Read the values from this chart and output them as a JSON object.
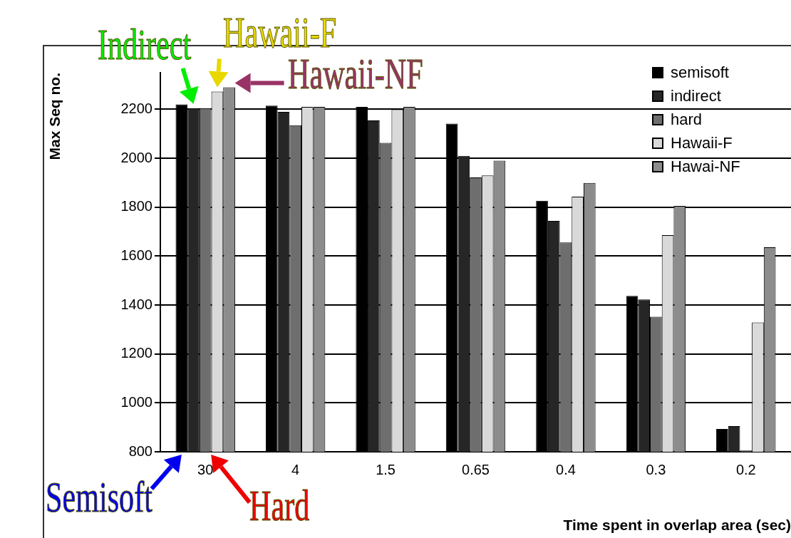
{
  "chart_data": {
    "type": "bar",
    "xlabel": "Time spent in overlap area (sec)",
    "ylabel": "Max Seq no.",
    "categories": [
      "30",
      "4",
      "1.5",
      "0.65",
      "0.4",
      "0.3",
      "0.2"
    ],
    "series": [
      {
        "name": "semisoft",
        "color": "#000000",
        "values": [
          2220,
          2215,
          2210,
          2142,
          1826,
          1437,
          893
        ]
      },
      {
        "name": "indirect",
        "color": "#262626",
        "values": [
          2205,
          2190,
          2155,
          2010,
          1744,
          1423,
          905
        ]
      },
      {
        "name": "hard",
        "color": "#6e6e6e",
        "values": [
          2205,
          2135,
          2063,
          1922,
          1656,
          1352,
          805
        ]
      },
      {
        "name": "Hawaii-F",
        "color": "#d9d9d9",
        "values": [
          2273,
          2210,
          2200,
          1930,
          1843,
          1686,
          1329
        ]
      },
      {
        "name": "Hawai-NF",
        "color": "#8c8c8c",
        "values": [
          2290,
          2210,
          2210,
          1990,
          1899,
          1805,
          1636
        ]
      }
    ],
    "ylim": [
      800,
      2350
    ],
    "yticks": [
      800,
      1000,
      1200,
      1400,
      1600,
      1800,
      2000,
      2200
    ],
    "grid": "y",
    "legend": "top right",
    "annotations": [
      "Indirect",
      "Hawaii-F",
      "Hawaii-NF",
      "Semisoft",
      "Hard"
    ]
  }
}
